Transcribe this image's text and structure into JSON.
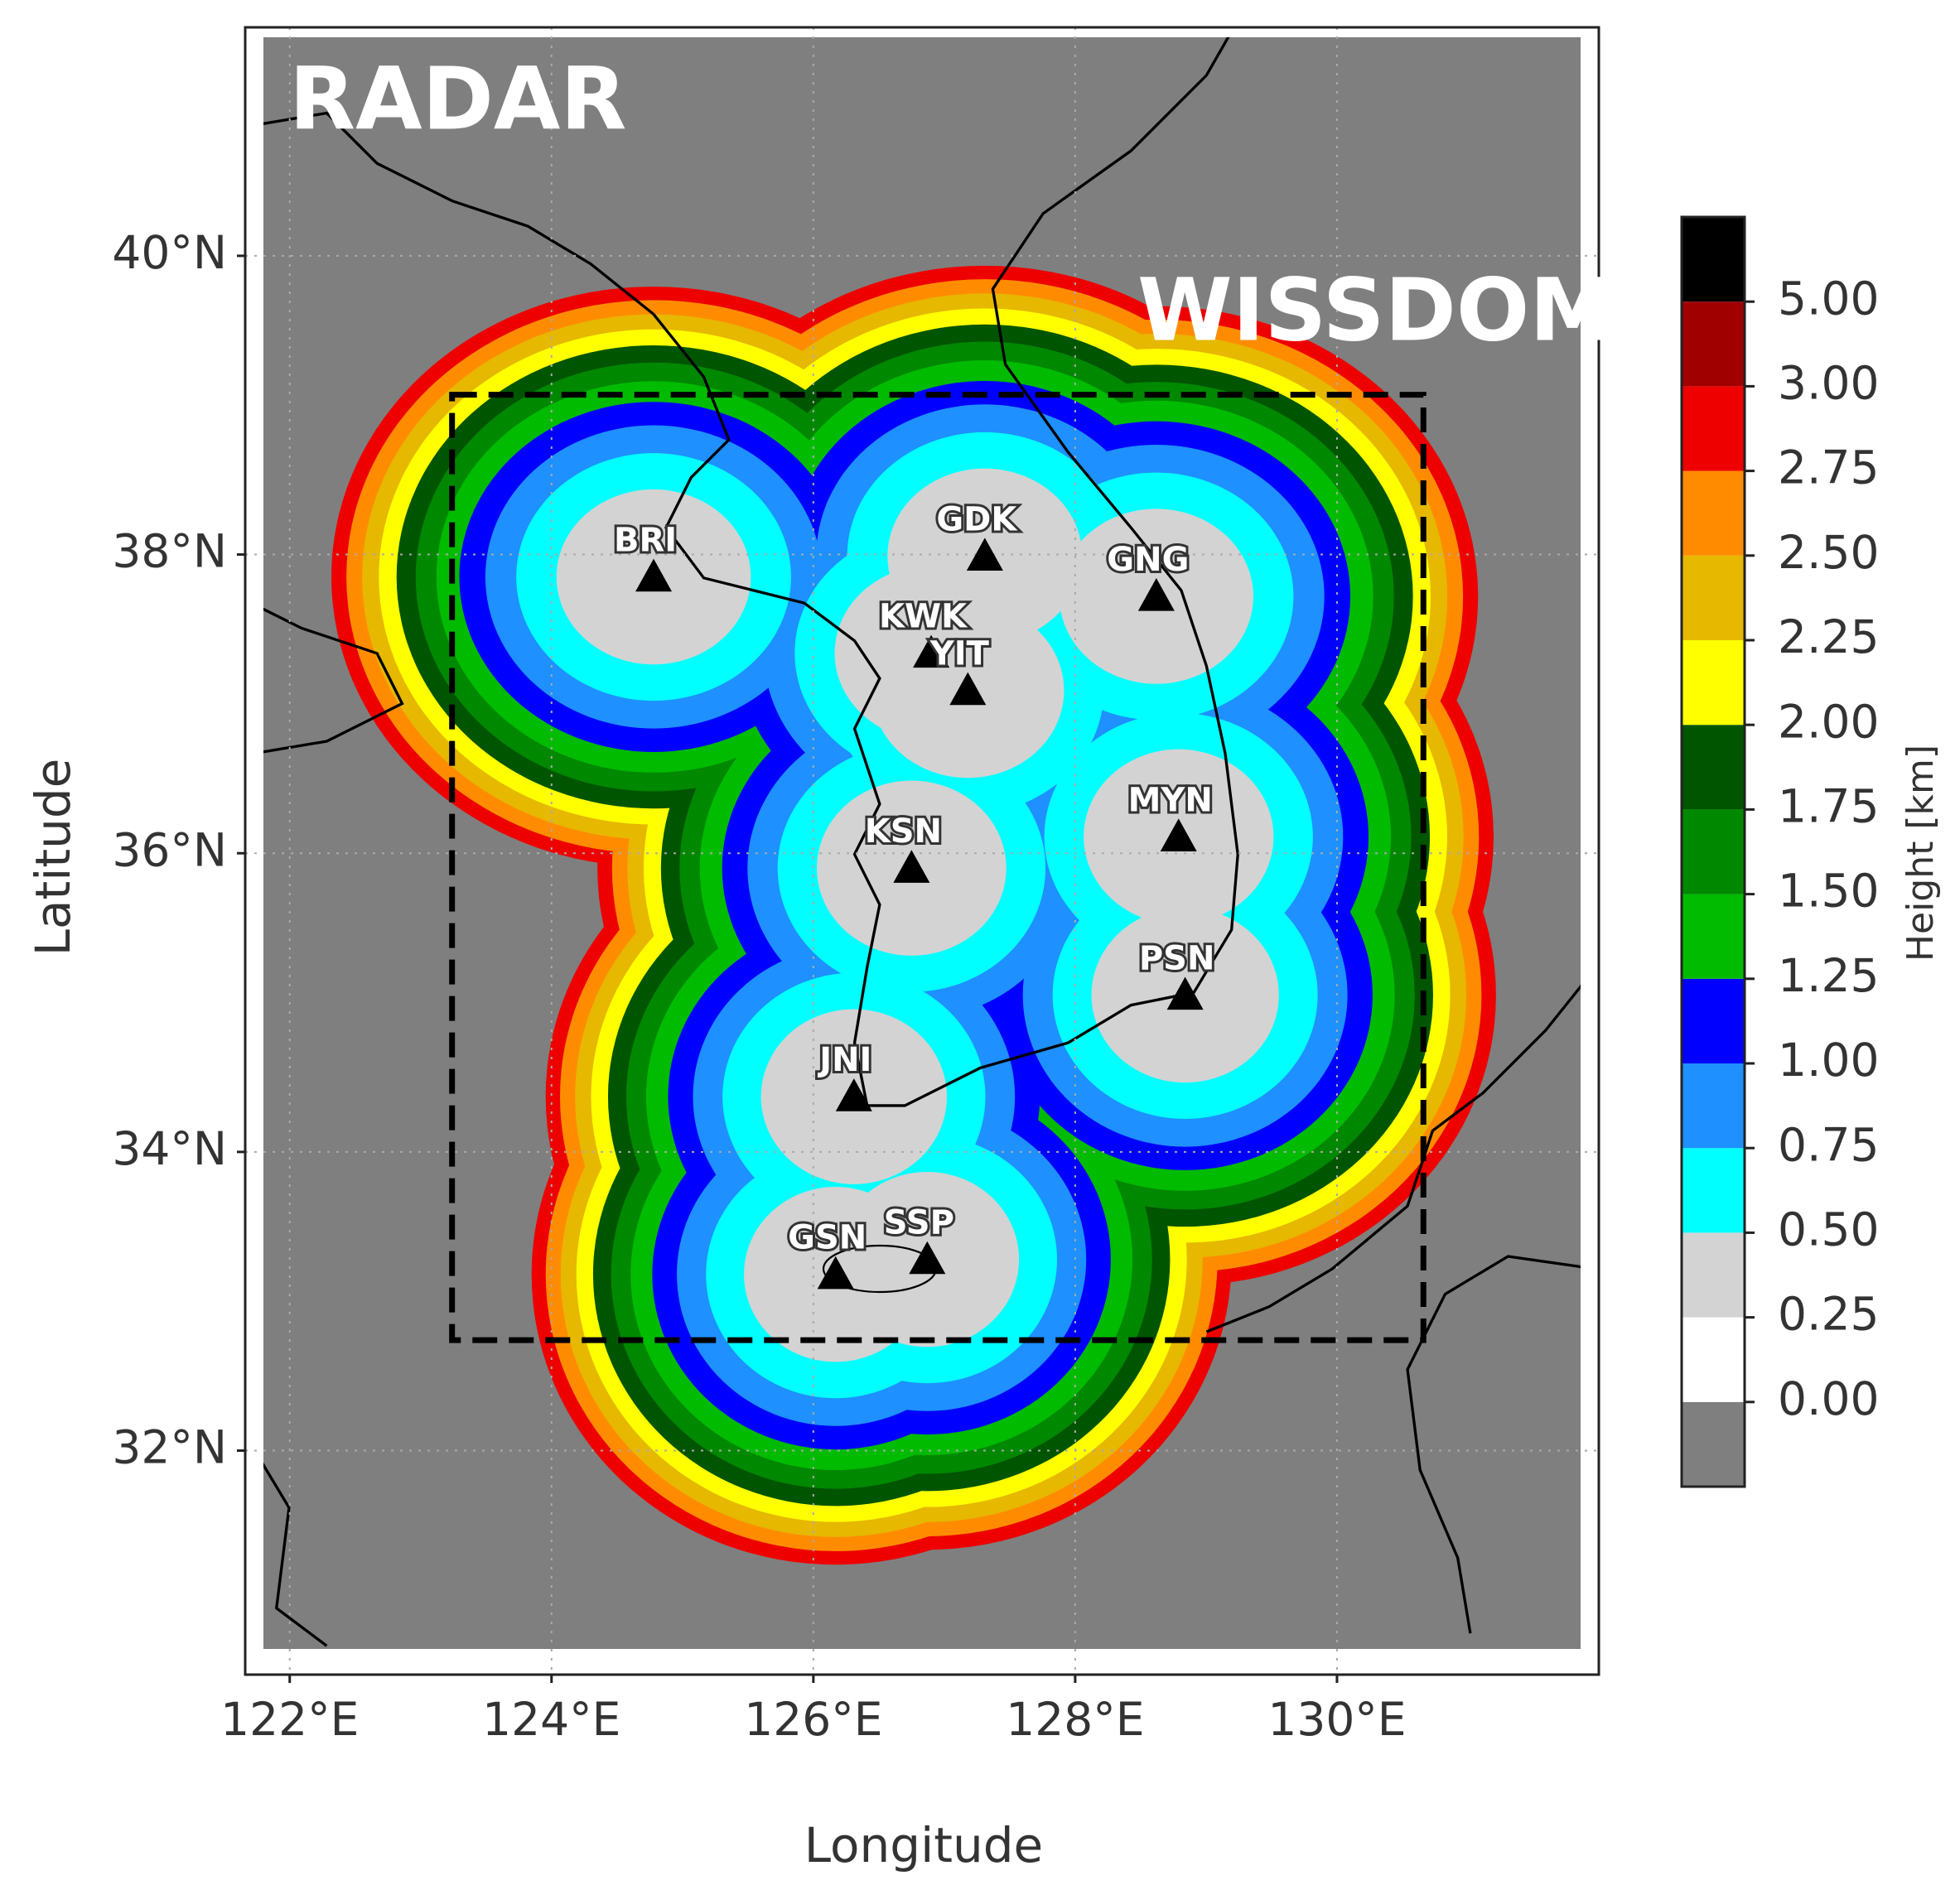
{
  "title": "RADAR",
  "domain_label": "WISSDOM",
  "map": {
    "xlabel": "Longitude",
    "ylabel": "Latitude",
    "xlim": [
      121.66,
      132.0
    ],
    "ylim": [
      30.5,
      41.53
    ],
    "xticks": [
      {
        "value": 122,
        "label": "122°E"
      },
      {
        "value": 124,
        "label": "124°E"
      },
      {
        "value": 126,
        "label": "126°E"
      },
      {
        "value": 128,
        "label": "128°E"
      },
      {
        "value": 130,
        "label": "130°E"
      }
    ],
    "yticks": [
      {
        "value": 32,
        "label": "32°N"
      },
      {
        "value": 34,
        "label": "34°N"
      },
      {
        "value": 36,
        "label": "36°N"
      },
      {
        "value": 38,
        "label": "38°N"
      },
      {
        "value": 40,
        "label": "40°N"
      }
    ],
    "grid": true
  },
  "domain_box": {
    "lon": [
      123.24,
      130.66
    ],
    "lat": [
      32.74,
      39.07
    ]
  },
  "stations": [
    {
      "name": "BRI",
      "lon": 124.78,
      "lat": 37.85
    },
    {
      "name": "GDK",
      "lon": 127.31,
      "lat": 37.99
    },
    {
      "name": "GNG",
      "lon": 128.62,
      "lat": 37.72
    },
    {
      "name": "KWK",
      "lon": 126.9,
      "lat": 37.34
    },
    {
      "name": "YIT",
      "lon": 127.18,
      "lat": 37.09
    },
    {
      "name": "KSN",
      "lon": 126.75,
      "lat": 35.9
    },
    {
      "name": "MYN",
      "lon": 128.79,
      "lat": 36.11
    },
    {
      "name": "PSN",
      "lon": 128.84,
      "lat": 35.05
    },
    {
      "name": "JNI",
      "lon": 126.31,
      "lat": 34.37
    },
    {
      "name": "GSN",
      "lon": 126.17,
      "lat": 33.18
    },
    {
      "name": "SSP",
      "lon": 126.87,
      "lat": 33.28
    }
  ],
  "colorbar": {
    "label": "Height [km]",
    "colors": [
      "#7f7f7f",
      "#ffffff",
      "#d3d3d3",
      "#00ffff",
      "#1e90ff",
      "#0000ff",
      "#00bb00",
      "#008800",
      "#005500",
      "#ffff00",
      "#e6b800",
      "#ff8c00",
      "#ee0000",
      "#a00000",
      "#000000"
    ],
    "ticks": [
      {
        "value": 0,
        "label": "0.00"
      },
      {
        "value": 0.25,
        "label": "0.25"
      },
      {
        "value": 0.5,
        "label": "0.50"
      },
      {
        "value": 0.75,
        "label": "0.75"
      },
      {
        "value": 1,
        "label": "1.00"
      },
      {
        "value": 1.25,
        "label": "1.25"
      },
      {
        "value": 1.5,
        "label": "1.50"
      },
      {
        "value": 1.75,
        "label": "1.75"
      },
      {
        "value": 2,
        "label": "2.00"
      },
      {
        "value": 2.25,
        "label": "2.25"
      },
      {
        "value": 2.5,
        "label": "2.50"
      },
      {
        "value": 2.75,
        "label": "2.75"
      },
      {
        "value": 3,
        "label": "3.00"
      },
      {
        "value": 5,
        "label": "5.00"
      }
    ]
  }
}
